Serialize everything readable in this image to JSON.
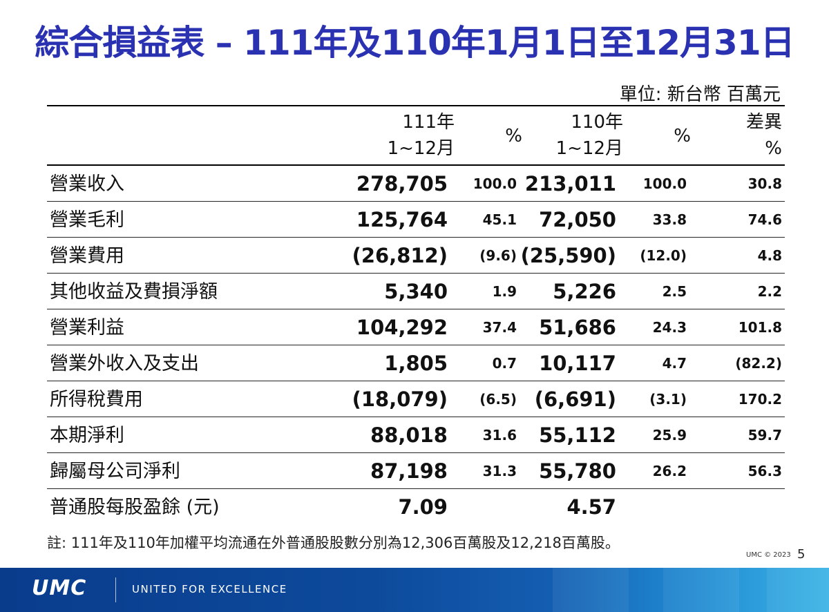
{
  "title": "綜合損益表 – 111年及110年1月1日至12月31日",
  "unit": "單位: 新台幣 百萬元",
  "header": {
    "col_a_line1": "111年",
    "col_a_line2": "1~12月",
    "col_pct_a": "%",
    "col_b_line1": "110年",
    "col_b_line2": "1~12月",
    "col_pct_b": "%",
    "col_diff_line1": "差異",
    "col_diff_line2": "%"
  },
  "rows": [
    {
      "label": "營業收入",
      "a": "278,705",
      "pa": "100.0",
      "b": "213,011",
      "pb": "100.0",
      "d": "30.8"
    },
    {
      "label": "營業毛利",
      "a": "125,764",
      "pa": "45.1",
      "b": "72,050",
      "pb": "33.8",
      "d": "74.6"
    },
    {
      "label": "營業費用",
      "a": "(26,812)",
      "pa": "(9.6)",
      "b": "(25,590)",
      "pb": "(12.0)",
      "d": "4.8"
    },
    {
      "label": "其他收益及費損淨額",
      "a": "5,340",
      "pa": "1.9",
      "b": "5,226",
      "pb": "2.5",
      "d": "2.2"
    },
    {
      "label": "營業利益",
      "a": "104,292",
      "pa": "37.4",
      "b": "51,686",
      "pb": "24.3",
      "d": "101.8"
    },
    {
      "label": "營業外收入及支出",
      "a": "1,805",
      "pa": "0.7",
      "b": "10,117",
      "pb": "4.7",
      "d": "(82.2)"
    },
    {
      "label": "所得稅費用",
      "a": "(18,079)",
      "pa": "(6.5)",
      "b": "(6,691)",
      "pb": "(3.1)",
      "d": "170.2"
    },
    {
      "label": "本期淨利",
      "a": "88,018",
      "pa": "31.6",
      "b": "55,112",
      "pb": "25.9",
      "d": "59.7"
    },
    {
      "label": "歸屬母公司淨利",
      "a": "87,198",
      "pa": "31.3",
      "b": "55,780",
      "pb": "26.2",
      "d": "56.3"
    },
    {
      "label": "普通股每股盈餘 (元)",
      "a": "7.09",
      "pa": "",
      "b": "4.57",
      "pb": "",
      "d": ""
    }
  ],
  "note": "註: 111年及110年加權平均流通在外普通股股數分別為12,306百萬股及12,218百萬股。",
  "copyright": "UMC © 2023",
  "page_number": "5",
  "footer": {
    "logo": "UMC",
    "tagline": "UNITED FOR EXCELLENCE"
  },
  "colors": {
    "title": "#2b32b2",
    "footer_dark": "#0a3c8c",
    "footer_light": "#3bb4e6"
  }
}
